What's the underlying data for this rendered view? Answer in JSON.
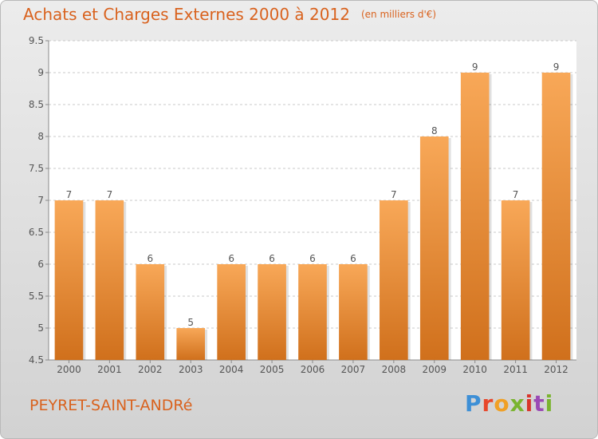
{
  "colors": {
    "title": "#d9621e",
    "bar_top": "#f8a858",
    "bar_bottom": "#d0701c",
    "grid": "#c9c9c9",
    "plot_bg": "#ffffff",
    "axis": "#888888"
  },
  "header": {
    "title": "Achats et Charges Externes 2000 à 2012",
    "unit": "(en milliers d'€)"
  },
  "footer": {
    "place": "PEYRET-SAINT-ANDRé",
    "logo": "Proxiti"
  },
  "chart_data": {
    "type": "bar",
    "title": "Achats et Charges Externes 2000 à 2012",
    "subtitle": "(en milliers d'€)",
    "categories": [
      "2000",
      "2001",
      "2002",
      "2003",
      "2004",
      "2005",
      "2006",
      "2007",
      "2008",
      "2009",
      "2010",
      "2011",
      "2012"
    ],
    "values": [
      7,
      7,
      6,
      5,
      6,
      6,
      6,
      6,
      7,
      8,
      9,
      7,
      9
    ],
    "data_labels": [
      "7",
      "7",
      "6",
      "5",
      "6",
      "6",
      "6",
      "6",
      "7",
      "8",
      "9",
      "7",
      "9"
    ],
    "ylim": [
      4.5,
      9.5
    ],
    "yticks": [
      4.5,
      5,
      5.5,
      6,
      6.5,
      7,
      7.5,
      8,
      8.5,
      9,
      9.5
    ],
    "ytick_labels": [
      "4.5",
      "5",
      "5.5",
      "6",
      "6.5",
      "7",
      "7.5",
      "8",
      "8.5",
      "9",
      "9.5"
    ],
    "xlabel": "",
    "ylabel": "",
    "grid": true,
    "legend": "none"
  }
}
